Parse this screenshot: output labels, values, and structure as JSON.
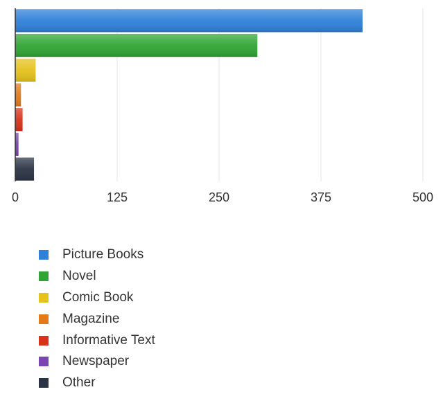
{
  "chart_data": {
    "type": "bar",
    "orientation": "horizontal",
    "title": "",
    "xlabel": "",
    "ylabel": "",
    "categories": [
      "Picture Books",
      "Novel",
      "Comic Book",
      "Magazine",
      "Informative Text",
      "Newspaper",
      "Other"
    ],
    "values": [
      426,
      297,
      25,
      7,
      9,
      4,
      23
    ],
    "colors": [
      "#2f80d8",
      "#30a535",
      "#e5c21c",
      "#e37a18",
      "#d8321a",
      "#7a45b0",
      "#2b3445"
    ],
    "xlim": [
      0,
      500
    ],
    "x_ticks": [
      "0",
      "125",
      "250",
      "375",
      "500"
    ],
    "grid": true,
    "legend": "bottom",
    "legend_entries": [
      "Picture Books",
      "Novel",
      "Comic Book",
      "Magazine",
      "Informative Text",
      "Newspaper",
      "Other"
    ]
  }
}
